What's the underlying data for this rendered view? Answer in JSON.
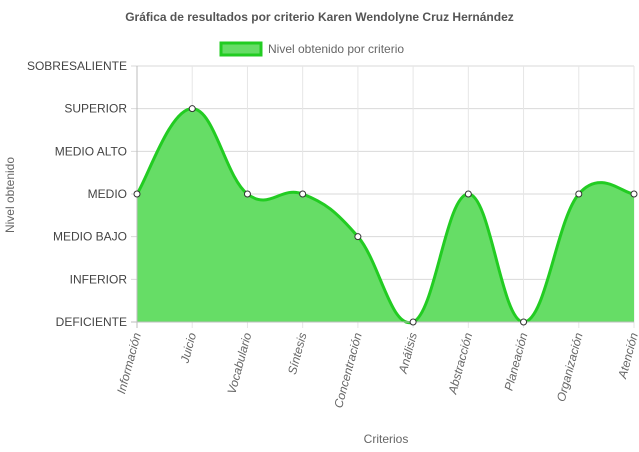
{
  "chart_data": {
    "type": "area",
    "title": "Gráfica de resultados por criterio Karen Wendolyne Cruz Hernández",
    "xlabel": "Criterios",
    "ylabel": "Nivel obtenido",
    "categories": [
      "Información",
      "Juicio",
      "Vocabulario",
      "Síntesis",
      "Concentración",
      "Análisis",
      "Abstracción",
      "Planeación",
      "Organización",
      "Atención"
    ],
    "levels": [
      "DEFICIENTE",
      "INFERIOR",
      "MEDIO BAJO",
      "MEDIO",
      "MEDIO ALTO",
      "SUPERIOR",
      "SOBRESALIENTE"
    ],
    "ylim": [
      0,
      6
    ],
    "grid": true,
    "legend_position": "top",
    "series": [
      {
        "name": "Nivel obtenido por criterio",
        "values": [
          3,
          5,
          3,
          3,
          2,
          0,
          3,
          0,
          3,
          3
        ],
        "fill_color": "#66dd66",
        "line_color": "#22cc22"
      }
    ]
  }
}
